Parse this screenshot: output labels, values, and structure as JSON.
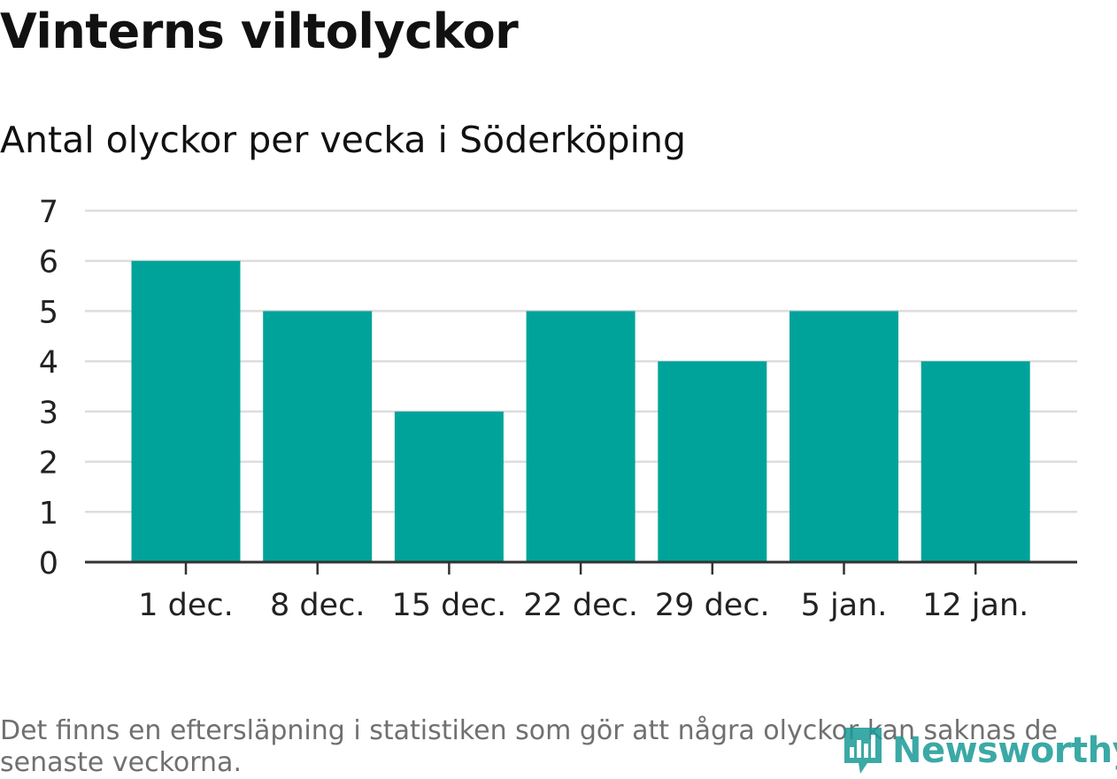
{
  "header": {
    "title": "Vinterns viltolyckor",
    "subtitle": "Antal olyckor per vecka i Söderköping"
  },
  "footer": {
    "note": "Det finns en eftersläpning i statistiken som gör att några olyckor kan saknas de senaste veckorna.",
    "brand": "Newsworthy"
  },
  "colors": {
    "bar": "#00a39a",
    "grid": "#dddddd",
    "axis": "#333333",
    "brand": "#1a9b96"
  },
  "chart_data": {
    "type": "bar",
    "title": "Vinterns viltolyckor",
    "subtitle": "Antal olyckor per vecka i Söderköping",
    "categories": [
      "1 dec.",
      "8 dec.",
      "15 dec.",
      "22 dec.",
      "29 dec.",
      "5 jan.",
      "12 jan."
    ],
    "values": [
      6,
      5,
      3,
      5,
      4,
      5,
      4
    ],
    "xlabel": "",
    "ylabel": "",
    "ylim": [
      0,
      7
    ],
    "yticks": [
      0,
      1,
      2,
      3,
      4,
      5,
      6,
      7
    ],
    "grid": true,
    "legend": "none"
  }
}
